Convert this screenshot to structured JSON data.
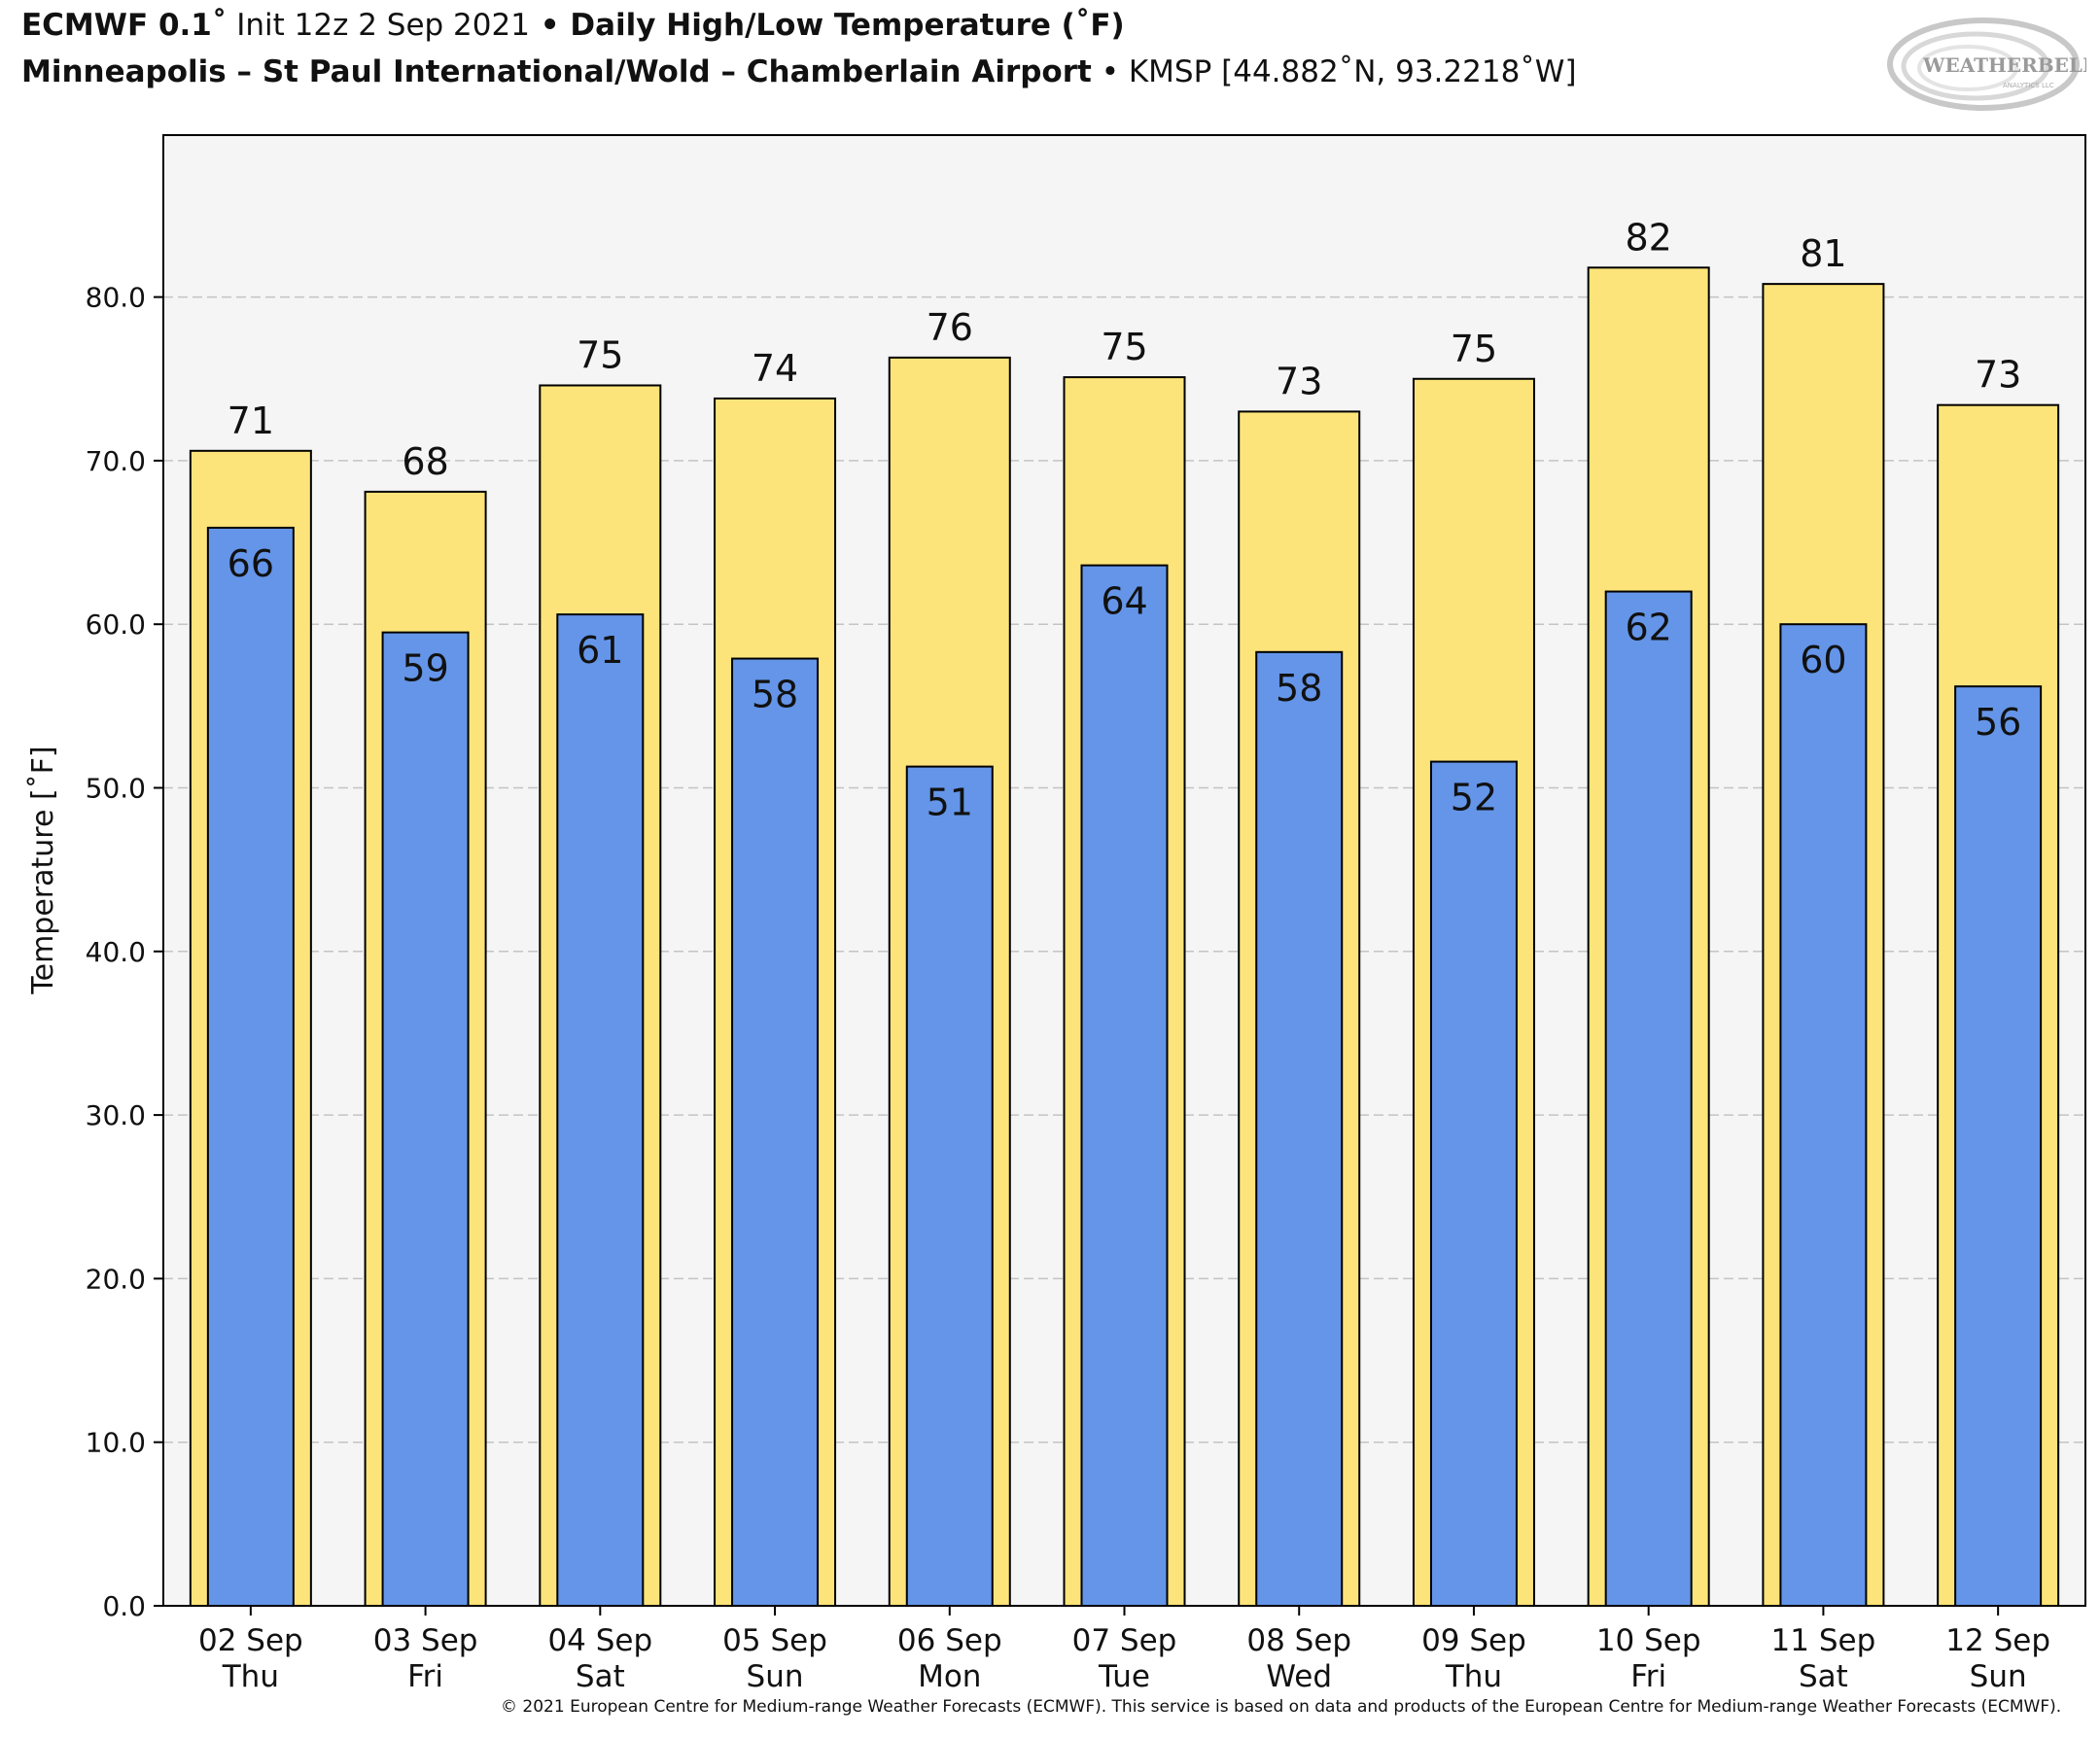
{
  "header": {
    "line1": {
      "model": "ECMWF 0.1˚",
      "init": " Init 12z 2 Sep 2021",
      "sep": " • ",
      "product": "Daily High/Low Temperature (˚F)"
    },
    "line2": {
      "station": "Minneapolis – St Paul International/Wold – Chamberlain Airport",
      "sep": " • ",
      "coords": "KMSP [44.882˚N, 93.2218˚W]"
    }
  },
  "logo": {
    "text": "WEATHERBELL",
    "sub": "ANALYTICS LLC"
  },
  "chart_data": {
    "type": "bar",
    "ylabel": "Temperature [˚F]",
    "ylim": [
      0,
      90
    ],
    "yticks": [
      "0.0",
      "10.0",
      "20.0",
      "30.0",
      "40.0",
      "50.0",
      "60.0",
      "70.0",
      "80.0"
    ],
    "grid": true,
    "categories": [
      {
        "date": "02 Sep",
        "day": "Thu"
      },
      {
        "date": "03 Sep",
        "day": "Fri"
      },
      {
        "date": "04 Sep",
        "day": "Sat"
      },
      {
        "date": "05 Sep",
        "day": "Sun"
      },
      {
        "date": "06 Sep",
        "day": "Mon"
      },
      {
        "date": "07 Sep",
        "day": "Tue"
      },
      {
        "date": "08 Sep",
        "day": "Wed"
      },
      {
        "date": "09 Sep",
        "day": "Thu"
      },
      {
        "date": "10 Sep",
        "day": "Fri"
      },
      {
        "date": "11 Sep",
        "day": "Sat"
      },
      {
        "date": "12 Sep",
        "day": "Sun"
      }
    ],
    "series": [
      {
        "role": "high",
        "color": "#FDE47A",
        "values": [
          70.6,
          68.1,
          74.6,
          73.8,
          76.3,
          75.1,
          73.0,
          75.0,
          81.8,
          80.8,
          73.4
        ],
        "labels": [
          "71",
          "68",
          "75",
          "74",
          "76",
          "75",
          "73",
          "75",
          "82",
          "81",
          "73"
        ]
      },
      {
        "role": "low",
        "color": "#6495E8",
        "values": [
          65.9,
          59.5,
          60.6,
          57.9,
          51.3,
          63.6,
          58.3,
          51.6,
          62.0,
          60.0,
          56.2
        ],
        "labels": [
          "66",
          "59",
          "61",
          "58",
          "51",
          "64",
          "58",
          "52",
          "62",
          "60",
          "56"
        ]
      }
    ]
  },
  "footer": "© 2021 European Centre for Medium-range Weather Forecasts (ECMWF). This service is based on data and products of the European Centre for Medium-range Weather Forecasts (ECMWF)."
}
